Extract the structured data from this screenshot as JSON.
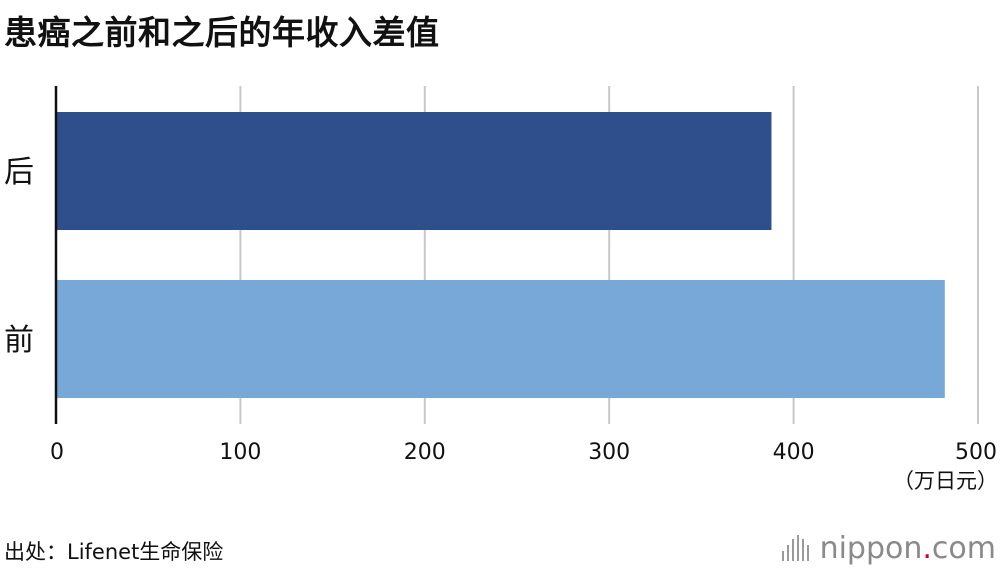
{
  "title": "患癌之前和之后的年收入差值",
  "source": "出处：Lifenet生命保险",
  "brand": {
    "name": "nippon",
    "dot": ".",
    "tld": "com",
    "dot_color": "#d9001b"
  },
  "colors": {
    "after": "#2f4f8c",
    "before": "#78a8d8",
    "grid": "#c8c8c8",
    "axis": "#111111"
  },
  "chart_data": {
    "type": "bar",
    "orientation": "horizontal",
    "categories": [
      "后",
      "前"
    ],
    "values": [
      388,
      482
    ],
    "xlim": [
      0,
      500
    ],
    "xticks": [
      "0",
      "100",
      "200",
      "300",
      "400",
      "500"
    ],
    "unit_label": "（万日元）",
    "grid": true,
    "legend": "none"
  }
}
